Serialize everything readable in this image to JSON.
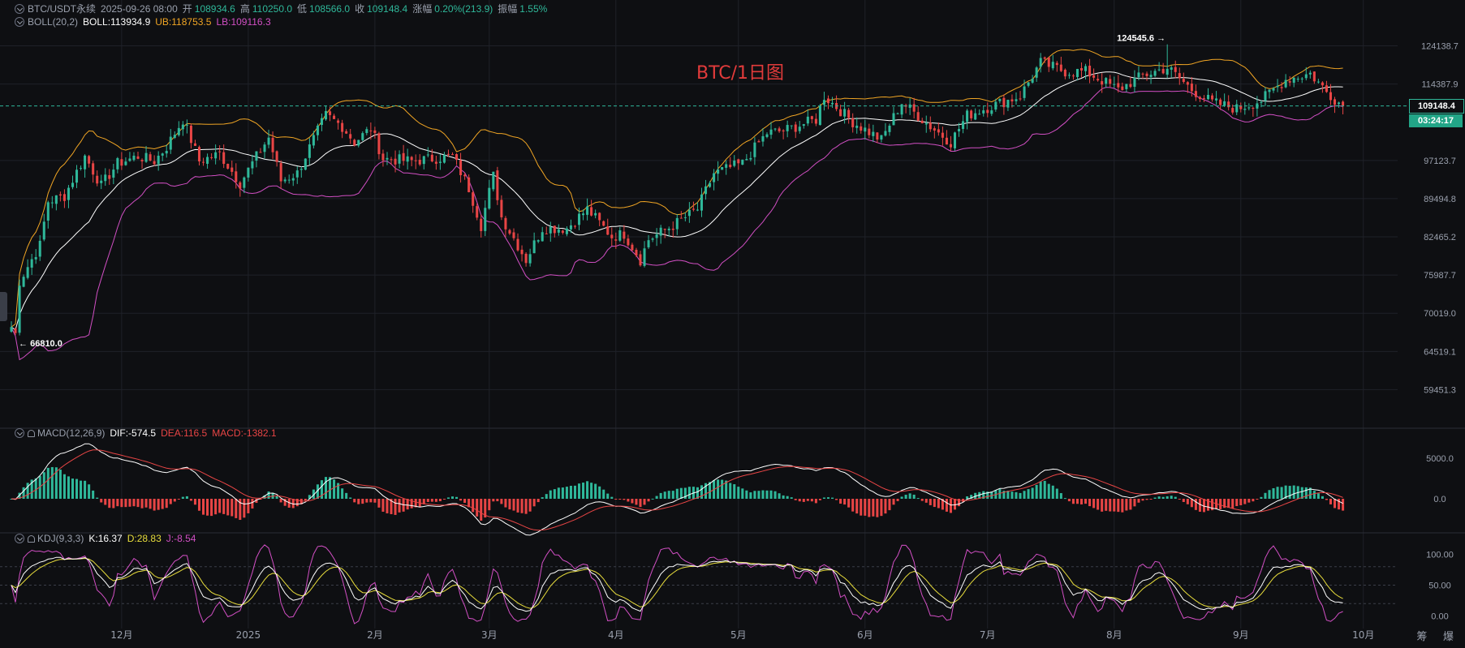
{
  "header": {
    "symbol": "BTC/USDT永续",
    "datetime": "2025-09-26 08:00",
    "open_label": "开",
    "open": "108934.6",
    "high_label": "高",
    "high": "110250.0",
    "low_label": "低",
    "low": "108566.0",
    "close_label": "收",
    "close": "109148.4",
    "change_label": "涨幅",
    "change": "0.20%(213.9)",
    "amplitude_label": "振幅",
    "amplitude": "1.55%"
  },
  "boll": {
    "name": "BOLL(20,2)",
    "mid_label": "BOLL:",
    "mid": "113934.9",
    "ub_label": "UB:",
    "ub": "118753.5",
    "lb_label": "LB:",
    "lb": "109116.3"
  },
  "macd": {
    "name": "MACD(12,26,9)",
    "dif_label": "DIF:",
    "dif": "-574.5",
    "dea_label": "DEA:",
    "dea": "116.5",
    "macd_label": "MACD:",
    "macd": "-1382.1"
  },
  "kdj": {
    "name": "KDJ(9,3,3)",
    "k_label": "K:",
    "k": "16.37",
    "d_label": "D:",
    "d": "28.83",
    "j_label": "J:",
    "j": "-8.54"
  },
  "watermark": "BTC/1日图",
  "current_price_tag": "109148.4",
  "countdown_tag": "03:24:17",
  "corner_label": "筹 爆",
  "colors": {
    "up": "#2fb89a",
    "down": "#e84545",
    "mid": "#ffffff",
    "ub": "#f0a524",
    "lb": "#d24fc4",
    "dea": "#e84545",
    "kdj_d": "#e8dd3c",
    "kdj_j": "#d24fc4",
    "grid": "#1f2128",
    "axis_text": "#9aa0ad"
  },
  "chart_data": {
    "type": "candlestick",
    "interval": "1日",
    "x_labels": [
      "12月",
      "2025",
      "2月",
      "3月",
      "4月",
      "5月",
      "6月",
      "7月",
      "8月",
      "9月",
      "10月"
    ],
    "price_axis_ticks": [
      "124138.7",
      "114387.9",
      "97123.7",
      "89494.8",
      "82465.2",
      "75987.7",
      "70019.0",
      "64519.1",
      "59451.3"
    ],
    "price_axis_values": [
      124138.7,
      114387.9,
      97123.7,
      89494.8,
      82465.2,
      75987.7,
      70019.0,
      64519.1,
      59451.3
    ],
    "log_scale": true,
    "price_range": [
      55500,
      130000
    ],
    "annotations": {
      "max": {
        "label": "124545.6",
        "value": 124545.6,
        "date": "2025-08-14"
      },
      "min": {
        "label": "66810.0",
        "value": 66810.0,
        "date": "2024-11-05"
      }
    },
    "current_price": 109148.4,
    "start_date": "2024-11-04",
    "month_starts": {
      "12月": "2024-12-01",
      "2025": "2025-01-01",
      "2月": "2025-02-01",
      "3月": "2025-03-01",
      "4月": "2025-04-01",
      "5月": "2025-05-01",
      "6月": "2025-06-01",
      "7月": "2025-07-01",
      "8月": "2025-08-01",
      "9月": "2025-09-01",
      "10月": "2025-10-01"
    },
    "close_path": [
      [
        "2024-11-04",
        68000
      ],
      [
        "2024-11-05",
        67000
      ],
      [
        "2024-11-06",
        75000
      ],
      [
        "2024-11-11",
        81000
      ],
      [
        "2024-11-13",
        89000
      ],
      [
        "2024-11-17",
        90000
      ],
      [
        "2024-11-22",
        98000
      ],
      [
        "2024-11-26",
        92000
      ],
      [
        "2024-11-30",
        96500
      ],
      [
        "2024-12-05",
        98000
      ],
      [
        "2024-12-09",
        97000
      ],
      [
        "2024-12-12",
        100000
      ],
      [
        "2024-12-16",
        106000
      ],
      [
        "2024-12-20",
        97000
      ],
      [
        "2024-12-25",
        98500
      ],
      [
        "2024-12-30",
        92500
      ],
      [
        "2025-01-06",
        102000
      ],
      [
        "2025-01-09",
        93000
      ],
      [
        "2025-01-13",
        94500
      ],
      [
        "2025-01-20",
        107000
      ],
      [
        "2025-01-24",
        104500
      ],
      [
        "2025-01-27",
        101000
      ],
      [
        "2025-01-31",
        104000
      ],
      [
        "2025-02-03",
        97500
      ],
      [
        "2025-02-10",
        97000
      ],
      [
        "2025-02-20",
        98000
      ],
      [
        "2025-02-24",
        91500
      ],
      [
        "2025-02-27",
        84500
      ],
      [
        "2025-03-02",
        94000
      ],
      [
        "2025-03-04",
        86000
      ],
      [
        "2025-03-10",
        78500
      ],
      [
        "2025-03-14",
        84000
      ],
      [
        "2025-03-20",
        84000
      ],
      [
        "2025-03-25",
        87500
      ],
      [
        "2025-03-31",
        82500
      ],
      [
        "2025-04-03",
        83000
      ],
      [
        "2025-04-07",
        78500
      ],
      [
        "2025-04-09",
        82000
      ],
      [
        "2025-04-15",
        84500
      ],
      [
        "2025-04-21",
        87500
      ],
      [
        "2025-04-25",
        94500
      ],
      [
        "2025-05-02",
        96500
      ],
      [
        "2025-05-08",
        103000
      ],
      [
        "2025-05-12",
        103500
      ],
      [
        "2025-05-20",
        106000
      ],
      [
        "2025-05-22",
        111500
      ],
      [
        "2025-05-29",
        105500
      ],
      [
        "2025-06-05",
        101500
      ],
      [
        "2025-06-10",
        110000
      ],
      [
        "2025-06-17",
        104500
      ],
      [
        "2025-06-22",
        101000
      ],
      [
        "2025-06-26",
        107000
      ],
      [
        "2025-07-03",
        109500
      ],
      [
        "2025-07-09",
        111500
      ],
      [
        "2025-07-14",
        119800
      ],
      [
        "2025-07-20",
        117500
      ],
      [
        "2025-07-25",
        117500
      ],
      [
        "2025-08-02",
        113000
      ],
      [
        "2025-08-08",
        116500
      ],
      [
        "2025-08-14",
        118500
      ],
      [
        "2025-08-20",
        113000
      ],
      [
        "2025-08-25",
        110000
      ],
      [
        "2025-08-31",
        108500
      ],
      [
        "2025-09-06",
        110500
      ],
      [
        "2025-09-12",
        115500
      ],
      [
        "2025-09-18",
        117000
      ],
      [
        "2025-09-22",
        112500
      ],
      [
        "2025-09-26",
        109148.4
      ]
    ],
    "boll_last": {
      "mid": 113934.9,
      "ub": 118753.5,
      "lb": 109116.3
    },
    "macd_axis_ticks": [
      "5000.0",
      "0.0"
    ],
    "macd_axis_values": [
      5000,
      0
    ],
    "macd_last": {
      "dif": -574.5,
      "dea": 116.5,
      "macd": -1382.1
    },
    "kdj_axis_ticks": [
      "100.00",
      "50.00",
      "0.00"
    ],
    "kdj_axis_values": [
      100,
      50,
      0
    ],
    "kdj_levels": [
      80,
      50,
      20
    ],
    "kdj_last": {
      "k": 16.37,
      "d": 28.83,
      "j": -8.54
    }
  }
}
